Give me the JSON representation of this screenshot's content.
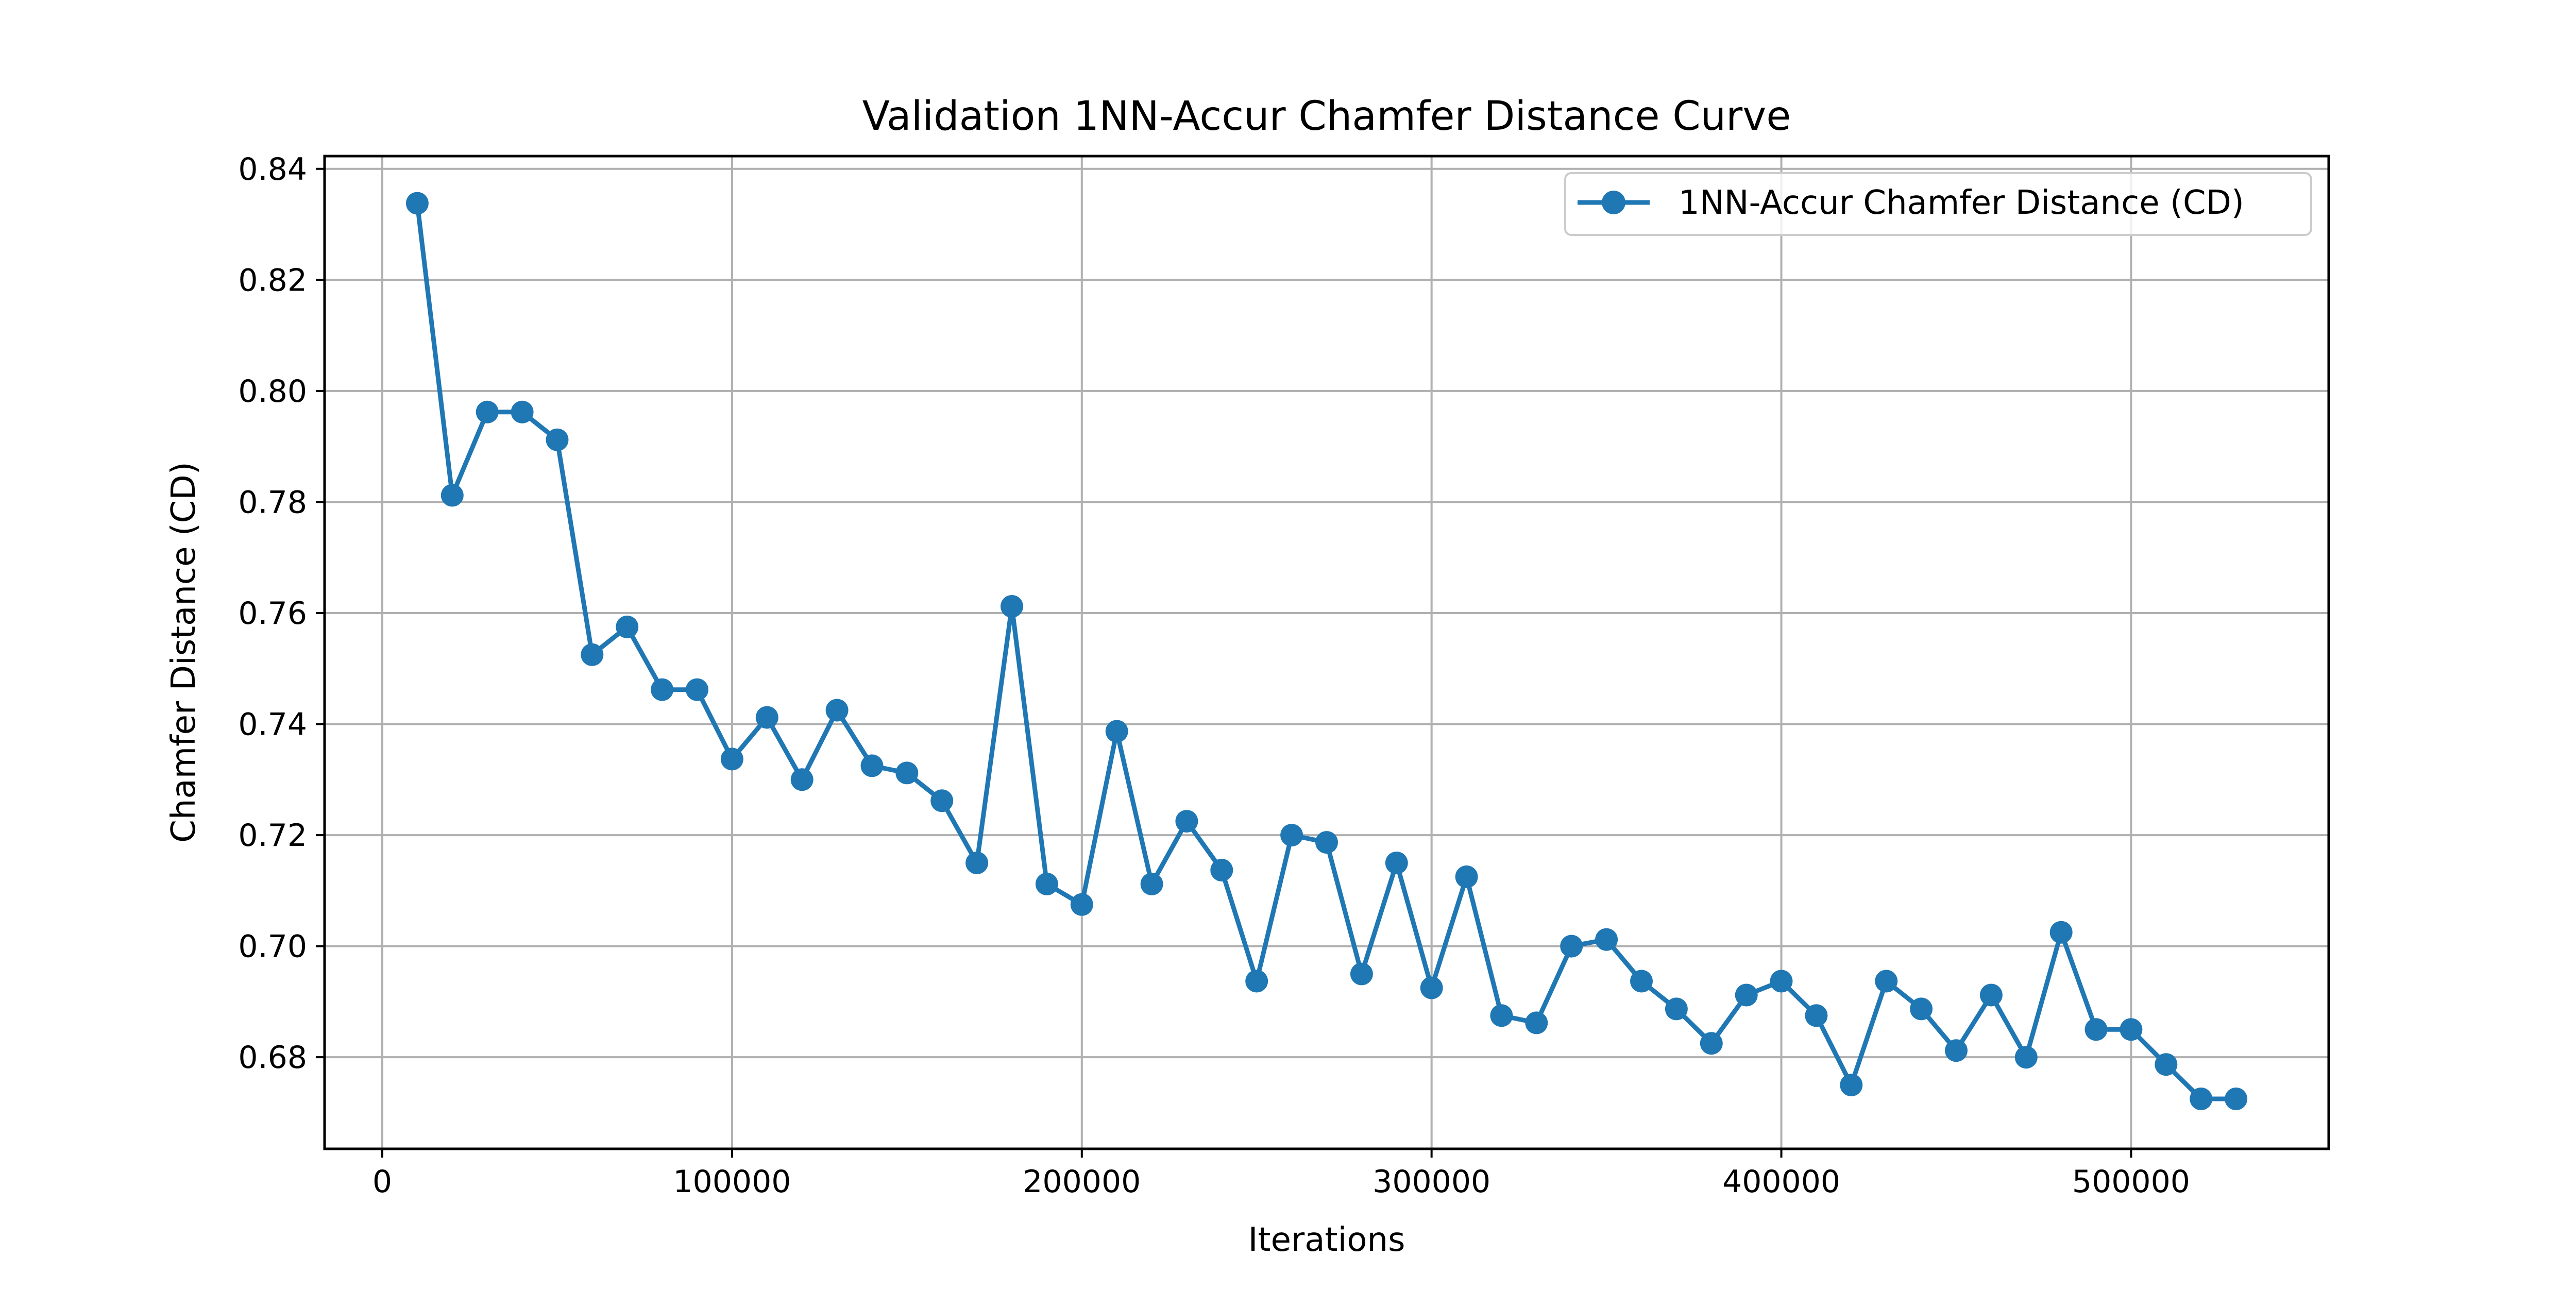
{
  "chart_data": {
    "type": "line",
    "title": "Validation 1NN-Accur Chamfer Distance Curve",
    "xlabel": "Iterations",
    "ylabel": "Chamfer Distance (CD)",
    "xlim": [
      -16500,
      556500
    ],
    "ylim": [
      0.6635,
      0.8423
    ],
    "xticks": [
      0,
      100000,
      200000,
      300000,
      400000,
      500000
    ],
    "xtick_labels": [
      "0",
      "100000",
      "200000",
      "300000",
      "400000",
      "500000"
    ],
    "yticks": [
      0.68,
      0.7,
      0.72,
      0.74,
      0.76,
      0.78,
      0.8,
      0.82,
      0.84
    ],
    "ytick_labels": [
      "0.68",
      "0.70",
      "0.72",
      "0.74",
      "0.76",
      "0.78",
      "0.80",
      "0.82",
      "0.84"
    ],
    "grid": true,
    "legend_position": "top-right",
    "series": [
      {
        "name": "1NN-Accur Chamfer Distance (CD)",
        "color": "#1f77b4",
        "marker": "circle",
        "x": [
          10000,
          20000,
          30000,
          40000,
          50000,
          60000,
          70000,
          80000,
          90000,
          100000,
          110000,
          120000,
          130000,
          140000,
          150000,
          160000,
          170000,
          180000,
          190000,
          200000,
          210000,
          220000,
          230000,
          240000,
          250000,
          260000,
          270000,
          280000,
          290000,
          300000,
          310000,
          320000,
          330000,
          340000,
          350000,
          360000,
          370000,
          380000,
          390000,
          400000,
          410000,
          420000,
          430000,
          440000,
          450000,
          460000,
          470000,
          480000,
          490000,
          500000,
          510000,
          520000,
          530000
        ],
        "y": [
          0.8338,
          0.7812,
          0.7962,
          0.7962,
          0.7912,
          0.7525,
          0.7575,
          0.7462,
          0.7462,
          0.7337,
          0.7412,
          0.73,
          0.7425,
          0.7325,
          0.7312,
          0.7262,
          0.715,
          0.7612,
          0.7112,
          0.7075,
          0.7387,
          0.7112,
          0.7225,
          0.7137,
          0.6937,
          0.72,
          0.7187,
          0.695,
          0.715,
          0.6925,
          0.7125,
          0.6875,
          0.6862,
          0.7,
          0.7012,
          0.6937,
          0.6887,
          0.6825,
          0.6912,
          0.6937,
          0.6875,
          0.675,
          0.6937,
          0.6887,
          0.6812,
          0.6912,
          0.68,
          0.7025,
          0.685,
          0.685,
          0.6787,
          0.6725,
          0.6725
        ]
      }
    ]
  }
}
